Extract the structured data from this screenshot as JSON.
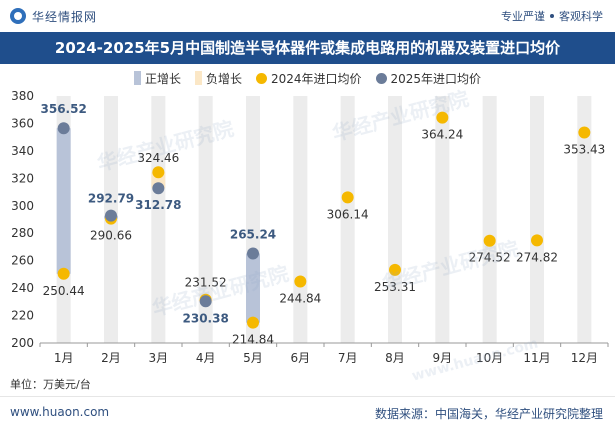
{
  "header": {
    "brand": "华经情报网",
    "tagline_a": "专业严谨",
    "tagline_b": "客观科学"
  },
  "watermark": "华经产业研究院",
  "watermark_url": "www.huaon.com",
  "footer": {
    "unit": "单位：万美元/台",
    "url": "www.huaon.com",
    "source": "数据来源：中国海关，华经产业研究院整理"
  },
  "colors": {
    "title_bg": "#1f4e8c",
    "positive_bar": "#b8c3d8",
    "negative_bar": "#fbe7c6",
    "series_2024": "#f5b800",
    "series_2025": "#6b7c99",
    "column_bg": "#ececec",
    "label_2025": "#3d5a80"
  },
  "chart_data": {
    "type": "scatter",
    "title": "2024-2025年5月中国制造半导体器件或集成电路用的机器及装置进口均价",
    "categories": [
      "1月",
      "2月",
      "3月",
      "4月",
      "5月",
      "6月",
      "7月",
      "8月",
      "9月",
      "10月",
      "11月",
      "12月"
    ],
    "ylim": [
      200,
      380
    ],
    "yticks": [
      200,
      220,
      240,
      260,
      280,
      300,
      320,
      340,
      360,
      380
    ],
    "legend_position": "top-center",
    "legend": [
      {
        "name": "正增长",
        "kind": "bar",
        "color_key": "positive_bar"
      },
      {
        "name": "负增长",
        "kind": "bar",
        "color_key": "negative_bar"
      },
      {
        "name": "2024年进口均价",
        "kind": "dot",
        "color_key": "series_2024"
      },
      {
        "name": "2025年进口均价",
        "kind": "dot",
        "color_key": "series_2025"
      }
    ],
    "series": [
      {
        "name": "2024年进口均价",
        "values": [
          250.44,
          290.66,
          324.46,
          231.52,
          214.84,
          244.84,
          306.14,
          253.31,
          364.24,
          274.52,
          274.82,
          353.43
        ]
      },
      {
        "name": "2025年进口均价",
        "values": [
          356.52,
          292.79,
          312.78,
          230.38,
          265.24
        ]
      }
    ],
    "labels_2024": [
      "250.44",
      "290.66",
      "324.46",
      "231.52",
      "214.84",
      "244.84",
      "306.14",
      "253.31",
      "364.24",
      "274.52",
      "274.82",
      "353.43"
    ],
    "labels_2025": [
      "356.52",
      "292.79",
      "312.78",
      "230.38",
      "265.24"
    ]
  }
}
